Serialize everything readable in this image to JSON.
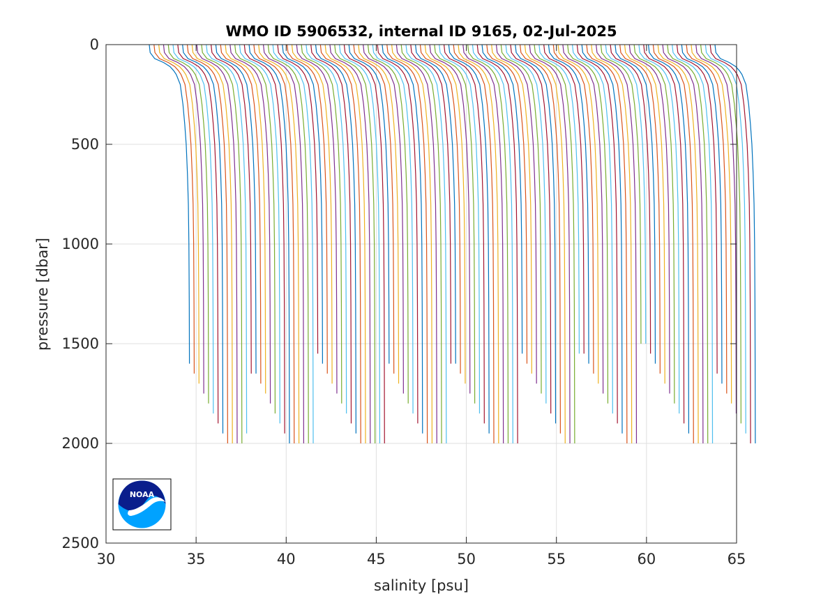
{
  "chart_data": {
    "type": "line",
    "title": "WMO ID 5906532, internal ID 9165, 02-Jul-2025",
    "xlabel": "salinity [psu]",
    "ylabel": "pressure [dbar]",
    "xlim": [
      30,
      65
    ],
    "ylim": [
      0,
      2500
    ],
    "y_reversed": true,
    "xticks": [
      "30",
      "35",
      "40",
      "45",
      "50",
      "55",
      "60",
      "65"
    ],
    "yticks": [
      "0",
      "500",
      "1000",
      "1500",
      "2000",
      "2500"
    ],
    "grid": true,
    "legend": "none",
    "logo": "NOAA",
    "series_description": "stacked salinity profiles, each successively offset in salinity",
    "profile_count": 120,
    "first_profile": {
      "surface_salinity": 32.4,
      "salinity_at_150dbar": 33.9,
      "salinity_at_500dbar": 34.5,
      "salinity_at_1000dbar": 34.6,
      "max_pressure": 1600
    },
    "last_profile": {
      "surface_salinity": 63.8,
      "salinity_at_150dbar": 64.4,
      "salinity_at_500dbar": 64.6,
      "max_pressure": 2000
    },
    "offset_per_profile": 0.26,
    "max_pressure_sequence": [
      1600,
      1650,
      1700,
      1750,
      1800,
      1850,
      1900,
      1950,
      2000,
      2000,
      2000,
      2000,
      1950,
      1650,
      1650,
      1700,
      1750,
      1800,
      1850,
      1900,
      1950,
      2000,
      2000,
      2000,
      2000,
      2000,
      2000,
      1550,
      1600,
      1650,
      1700,
      1750,
      1800,
      1850,
      1900,
      1950,
      2000,
      2000,
      2000,
      2000,
      2000,
      2000,
      1600,
      1650,
      1700,
      1750,
      1800,
      1850,
      1900,
      1950,
      2000,
      2000,
      2000,
      2000,
      2000,
      1600,
      1600,
      1650,
      1700,
      1750,
      1800,
      1850,
      1900,
      1950,
      2000,
      2000,
      2000,
      2000,
      2000,
      2000,
      1550,
      1600,
      1650,
      1700,
      1750,
      1800,
      1850,
      1900,
      1950,
      2000,
      2000,
      2000,
      1550,
      1550,
      1600,
      1650,
      1700,
      1750,
      1800,
      1850,
      1900,
      1950,
      2000,
      2000,
      2000,
      1500,
      1500,
      1550,
      1600,
      1650,
      1700,
      1750,
      1800,
      1850,
      1900,
      1950,
      2000,
      2000,
      2000,
      2000,
      2000,
      1650,
      1700,
      1750,
      1800,
      1850,
      1900,
      1950,
      2000,
      2000
    ],
    "colors": [
      "#0072bd",
      "#d95319",
      "#edb120",
      "#7e2f8e",
      "#77ac30",
      "#4dbeee",
      "#a2142f"
    ]
  }
}
